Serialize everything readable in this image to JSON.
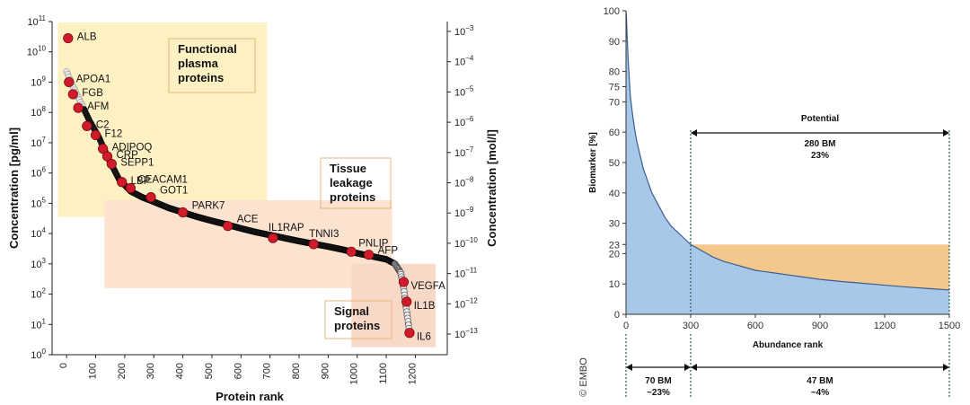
{
  "chart_data": [
    {
      "type": "scatter",
      "xlabel": "Protein rank",
      "ylabel": "Concentration [pg/ml]",
      "ylabel_right": "Concentration [mol/l]",
      "xlim": [
        -50,
        1310
      ],
      "ylim_log10": [
        0,
        11
      ],
      "x_ticks": [
        "0",
        "100",
        "200",
        "300",
        "400",
        "500",
        "600",
        "700",
        "800",
        "900",
        "1000",
        "1100",
        "1200"
      ],
      "y_ticks": [
        {
          "base": "10",
          "exp": "0"
        },
        {
          "base": "10",
          "exp": "1"
        },
        {
          "base": "10",
          "exp": "2"
        },
        {
          "base": "10",
          "exp": "3"
        },
        {
          "base": "10",
          "exp": "4"
        },
        {
          "base": "10",
          "exp": "5"
        },
        {
          "base": "10",
          "exp": "6"
        },
        {
          "base": "10",
          "exp": "7"
        },
        {
          "base": "10",
          "exp": "8"
        },
        {
          "base": "10",
          "exp": "9"
        },
        {
          "base": "10",
          "exp": "10"
        },
        {
          "base": "10",
          "exp": "11"
        }
      ],
      "y_ticks_right": [
        {
          "base": "10",
          "exp": "−3"
        },
        {
          "base": "10",
          "exp": "−4"
        },
        {
          "base": "10",
          "exp": "−5"
        },
        {
          "base": "10",
          "exp": "−6"
        },
        {
          "base": "10",
          "exp": "−7"
        },
        {
          "base": "10",
          "exp": "−8"
        },
        {
          "base": "10",
          "exp": "−9"
        },
        {
          "base": "10",
          "exp": "−10"
        },
        {
          "base": "10",
          "exp": "−11"
        },
        {
          "base": "10",
          "exp": "−12"
        },
        {
          "base": "10",
          "exp": "−13"
        }
      ],
      "regions": [
        {
          "lines": [
            "Functional",
            "plasma",
            "proteins"
          ],
          "color": "#fdf1c4"
        },
        {
          "lines": [
            "Tissue",
            "leakage",
            "proteins"
          ],
          "color": "#fbe3cf"
        },
        {
          "lines": [
            "Signal",
            "proteins"
          ],
          "color": "#f8d9c8"
        }
      ],
      "curve": [
        [
          0,
          9.35
        ],
        [
          20,
          8.9
        ],
        [
          50,
          8.3
        ],
        [
          80,
          7.7
        ],
        [
          110,
          7.2
        ],
        [
          140,
          6.55
        ],
        [
          180,
          5.8
        ],
        [
          220,
          5.4
        ],
        [
          260,
          5.2
        ],
        [
          300,
          5.05
        ],
        [
          350,
          4.85
        ],
        [
          400,
          4.7
        ],
        [
          450,
          4.55
        ],
        [
          500,
          4.42
        ],
        [
          550,
          4.3
        ],
        [
          600,
          4.17
        ],
        [
          650,
          4.05
        ],
        [
          700,
          3.95
        ],
        [
          750,
          3.85
        ],
        [
          800,
          3.75
        ],
        [
          850,
          3.66
        ],
        [
          900,
          3.57
        ],
        [
          950,
          3.47
        ],
        [
          1000,
          3.35
        ],
        [
          1050,
          3.25
        ],
        [
          1100,
          3.15
        ],
        [
          1130,
          3.0
        ],
        [
          1150,
          2.7
        ],
        [
          1160,
          2.2
        ],
        [
          1168,
          1.6
        ],
        [
          1175,
          1.1
        ],
        [
          1180,
          0.72
        ]
      ],
      "highlighted": [
        {
          "name": "ALB",
          "x": 5,
          "y": 10.45
        },
        {
          "name": "APOA1",
          "x": 8,
          "y": 9.0
        },
        {
          "name": "FGB",
          "x": 22,
          "y": 8.6
        },
        {
          "name": "AFM",
          "x": 40,
          "y": 8.15
        },
        {
          "name": "C2",
          "x": 70,
          "y": 7.55
        },
        {
          "name": "F12",
          "x": 100,
          "y": 7.25
        },
        {
          "name": "ADIPOQ",
          "x": 125,
          "y": 6.8
        },
        {
          "name": "CRP",
          "x": 140,
          "y": 6.55
        },
        {
          "name": "SEPP1",
          "x": 155,
          "y": 6.3
        },
        {
          "name": "LBP",
          "x": 190,
          "y": 5.7
        },
        {
          "name": "CEACAM1",
          "x": 220,
          "y": 5.5
        },
        {
          "name": "GOT1",
          "x": 290,
          "y": 5.2
        },
        {
          "name": "PARK7",
          "x": 400,
          "y": 4.7
        },
        {
          "name": "ACE",
          "x": 555,
          "y": 4.25
        },
        {
          "name": "IL1RAP",
          "x": 710,
          "y": 3.85
        },
        {
          "name": "TNNI3",
          "x": 850,
          "y": 3.65
        },
        {
          "name": "PNLIP",
          "x": 980,
          "y": 3.4
        },
        {
          "name": "AFP",
          "x": 1040,
          "y": 3.3
        },
        {
          "name": "VEGFA",
          "x": 1160,
          "y": 2.4
        },
        {
          "name": "IL1B",
          "x": 1170,
          "y": 1.75
        },
        {
          "name": "IL6",
          "x": 1180,
          "y": 0.72
        }
      ]
    },
    {
      "type": "area",
      "xlabel": "Abundance rank",
      "ylabel": "Biomarker [%]",
      "xlim": [
        0,
        1500
      ],
      "ylim": [
        0,
        100
      ],
      "x_ticks": [
        "0",
        "300",
        "600",
        "900",
        "1200",
        "1500"
      ],
      "y_ticks": [
        "0",
        "10",
        "20",
        "23",
        "30",
        "40",
        "50",
        "60",
        "70",
        "75",
        "80",
        "90",
        "100"
      ],
      "series": [
        {
          "name": "Biomarker",
          "x": [
            0,
            2,
            5,
            10,
            15,
            20,
            30,
            40,
            50,
            60,
            70,
            80,
            100,
            120,
            150,
            180,
            210,
            240,
            270,
            300,
            350,
            400,
            450,
            500,
            550,
            600,
            650,
            700,
            750,
            800,
            900,
            1000,
            1100,
            1200,
            1300,
            1400,
            1500
          ],
          "values": [
            100,
            98,
            92,
            84,
            78,
            72,
            66,
            61,
            57,
            54,
            51,
            48,
            44,
            40,
            36,
            32,
            29,
            27,
            25,
            23,
            21,
            19,
            17.5,
            16.5,
            15.5,
            14.5,
            14,
            13.5,
            13,
            12.5,
            11.5,
            10.8,
            10.2,
            9.6,
            9.0,
            8.5,
            8.0
          ]
        }
      ],
      "shaded_range": {
        "x": [
          300,
          1500
        ],
        "y": [
          8,
          23
        ],
        "color": "#f3c88c"
      },
      "annotations": {
        "potential_title": "Potential",
        "potential_count": "280 BM",
        "potential_pct": "23%",
        "left_count": "70 BM",
        "left_pct": "~23%",
        "right_count": "47 BM",
        "right_pct": "~4%"
      },
      "credit": "© EMBO"
    }
  ]
}
